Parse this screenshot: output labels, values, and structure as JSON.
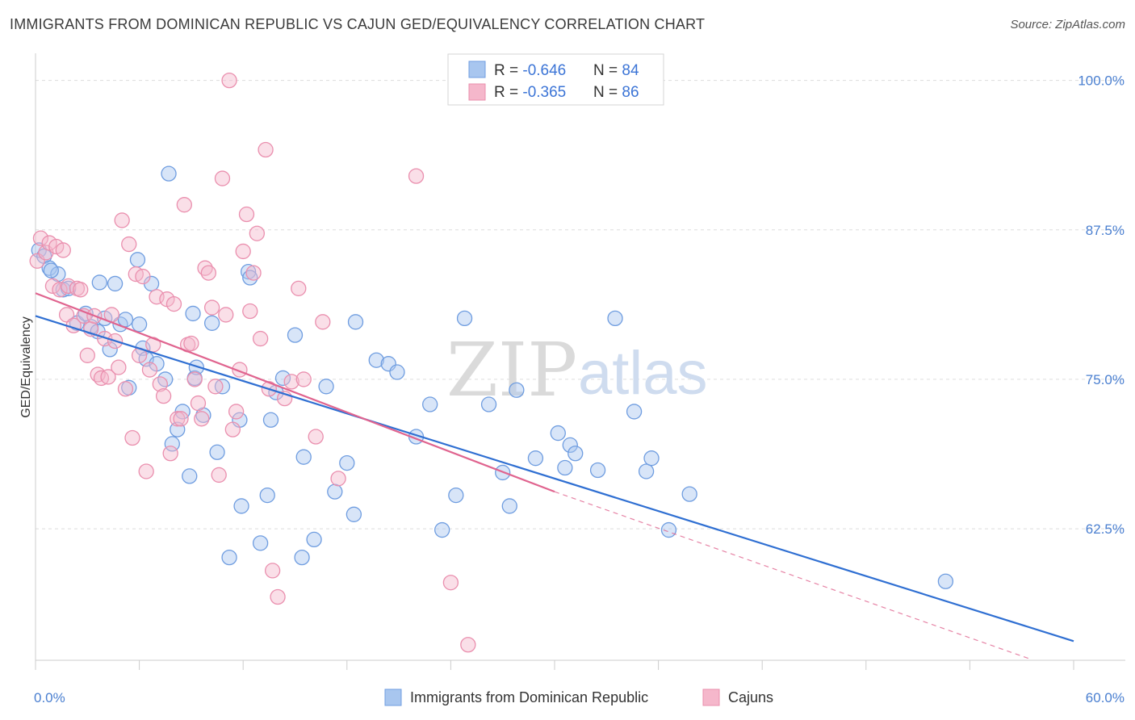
{
  "title": "IMMIGRANTS FROM DOMINICAN REPUBLIC VS CAJUN GED/EQUIVALENCY CORRELATION CHART",
  "source": "Source: ZipAtlas.com",
  "watermark": {
    "zip": "ZIP",
    "atlas": "atlas"
  },
  "colors": {
    "blue_fill": "#a8c6ef",
    "blue_stroke": "#6f9de0",
    "blue_line": "#2f6fd2",
    "pink_fill": "#f5b7cb",
    "pink_stroke": "#ea8fae",
    "pink_line": "#e0648f",
    "grid": "#dddddd",
    "tick_text": "#4a7fd0"
  },
  "legend": {
    "rows": [
      {
        "r_label": "R = ",
        "r_value": "-0.646",
        "n_label": "N = ",
        "n_value": "84"
      },
      {
        "r_label": "R = ",
        "r_value": "-0.365",
        "n_label": "N = ",
        "n_value": "86"
      }
    ]
  },
  "chart_data": {
    "type": "scatter",
    "ylabel": "GED/Equivalency",
    "xlim": [
      0,
      60
    ],
    "ylim": [
      51.5,
      102
    ],
    "x_tick_labels": [
      {
        "value": 0,
        "label": "0.0%"
      },
      {
        "value": 60,
        "label": "60.0%"
      }
    ],
    "y_tick_labels": [
      {
        "value": 100,
        "label": "100.0%"
      },
      {
        "value": 87.5,
        "label": "87.5%"
      },
      {
        "value": 75,
        "label": "75.0%"
      },
      {
        "value": 62.5,
        "label": "62.5%"
      }
    ],
    "grid": true,
    "legend_position": "top-center",
    "series": [
      {
        "name": "Immigrants from Dominican Republic",
        "trend": {
          "x": [
            0,
            60
          ],
          "y": [
            80.3,
            53.1
          ]
        },
        "points": [
          [
            0.2,
            85.8
          ],
          [
            0.5,
            85.3
          ],
          [
            0.8,
            84.3
          ],
          [
            1.3,
            83.8
          ],
          [
            0.9,
            84.1
          ],
          [
            1.6,
            82.5
          ],
          [
            1.9,
            82.6
          ],
          [
            2.4,
            79.7
          ],
          [
            2.9,
            80.5
          ],
          [
            3.2,
            79.4
          ],
          [
            3.6,
            79.0
          ],
          [
            3.7,
            83.1
          ],
          [
            4.0,
            80.1
          ],
          [
            4.3,
            77.5
          ],
          [
            4.6,
            83.0
          ],
          [
            4.9,
            79.6
          ],
          [
            5.2,
            80.0
          ],
          [
            5.4,
            74.3
          ],
          [
            5.9,
            85.0
          ],
          [
            6.0,
            79.6
          ],
          [
            6.2,
            77.6
          ],
          [
            6.4,
            76.7
          ],
          [
            6.7,
            83.0
          ],
          [
            7.0,
            76.3
          ],
          [
            7.5,
            75.0
          ],
          [
            7.7,
            92.2
          ],
          [
            7.9,
            69.6
          ],
          [
            8.2,
            70.8
          ],
          [
            8.5,
            72.3
          ],
          [
            8.9,
            66.9
          ],
          [
            9.1,
            80.5
          ],
          [
            9.2,
            75.1
          ],
          [
            9.3,
            76.0
          ],
          [
            9.7,
            72.0
          ],
          [
            10.2,
            79.7
          ],
          [
            10.5,
            68.9
          ],
          [
            10.8,
            74.4
          ],
          [
            11.2,
            60.1
          ],
          [
            11.8,
            71.6
          ],
          [
            11.9,
            64.4
          ],
          [
            12.3,
            84.0
          ],
          [
            12.4,
            83.5
          ],
          [
            13.0,
            61.3
          ],
          [
            13.4,
            65.3
          ],
          [
            13.6,
            71.6
          ],
          [
            13.9,
            73.9
          ],
          [
            14.3,
            75.1
          ],
          [
            15.0,
            78.7
          ],
          [
            15.4,
            60.1
          ],
          [
            15.5,
            68.5
          ],
          [
            16.1,
            61.6
          ],
          [
            16.8,
            74.4
          ],
          [
            17.3,
            65.6
          ],
          [
            18.0,
            68.0
          ],
          [
            18.4,
            63.7
          ],
          [
            18.5,
            79.8
          ],
          [
            19.7,
            76.6
          ],
          [
            20.4,
            76.3
          ],
          [
            20.9,
            75.6
          ],
          [
            22.0,
            70.2
          ],
          [
            22.8,
            72.9
          ],
          [
            23.5,
            62.4
          ],
          [
            24.3,
            65.3
          ],
          [
            24.8,
            80.1
          ],
          [
            26.2,
            72.9
          ],
          [
            27.0,
            67.2
          ],
          [
            27.4,
            64.4
          ],
          [
            27.8,
            74.1
          ],
          [
            28.9,
            68.4
          ],
          [
            30.2,
            70.5
          ],
          [
            30.6,
            67.6
          ],
          [
            30.9,
            69.5
          ],
          [
            31.2,
            68.8
          ],
          [
            32.5,
            67.4
          ],
          [
            33.5,
            80.1
          ],
          [
            34.6,
            72.3
          ],
          [
            35.3,
            67.3
          ],
          [
            35.6,
            68.4
          ],
          [
            36.6,
            62.4
          ],
          [
            37.8,
            65.4
          ],
          [
            52.6,
            58.1
          ]
        ]
      },
      {
        "name": "Cajuns",
        "trend": {
          "x": [
            0,
            30
          ],
          "y": [
            82.2,
            65.6
          ]
        },
        "trend_dashed": {
          "x": [
            30,
            57.5
          ],
          "y": [
            65.6,
            51.6
          ]
        },
        "points": [
          [
            0.1,
            84.9
          ],
          [
            0.3,
            86.8
          ],
          [
            0.6,
            85.6
          ],
          [
            0.8,
            86.4
          ],
          [
            1.0,
            82.8
          ],
          [
            1.2,
            86.1
          ],
          [
            1.4,
            82.5
          ],
          [
            1.6,
            85.8
          ],
          [
            1.8,
            80.4
          ],
          [
            1.9,
            82.8
          ],
          [
            2.2,
            79.5
          ],
          [
            2.4,
            82.6
          ],
          [
            2.6,
            82.5
          ],
          [
            2.8,
            80.3
          ],
          [
            3.0,
            77.0
          ],
          [
            3.2,
            79.2
          ],
          [
            3.4,
            80.3
          ],
          [
            3.6,
            75.4
          ],
          [
            3.8,
            75.1
          ],
          [
            4.0,
            78.4
          ],
          [
            4.2,
            75.2
          ],
          [
            4.4,
            80.4
          ],
          [
            4.6,
            78.2
          ],
          [
            4.8,
            76.0
          ],
          [
            5.0,
            88.3
          ],
          [
            5.2,
            74.2
          ],
          [
            5.4,
            86.3
          ],
          [
            5.6,
            70.1
          ],
          [
            5.8,
            83.8
          ],
          [
            6.0,
            77.0
          ],
          [
            6.2,
            83.6
          ],
          [
            6.4,
            67.3
          ],
          [
            6.6,
            75.8
          ],
          [
            6.8,
            77.9
          ],
          [
            7.0,
            81.9
          ],
          [
            7.2,
            74.6
          ],
          [
            7.4,
            73.6
          ],
          [
            7.6,
            81.7
          ],
          [
            7.8,
            68.8
          ],
          [
            8.0,
            81.3
          ],
          [
            8.2,
            71.7
          ],
          [
            8.4,
            71.7
          ],
          [
            8.6,
            89.6
          ],
          [
            8.8,
            77.9
          ],
          [
            9.0,
            78.0
          ],
          [
            9.2,
            75.0
          ],
          [
            9.4,
            73.0
          ],
          [
            9.6,
            71.7
          ],
          [
            9.8,
            84.3
          ],
          [
            10.0,
            83.9
          ],
          [
            10.2,
            81.0
          ],
          [
            10.4,
            74.4
          ],
          [
            10.6,
            67.0
          ],
          [
            10.8,
            91.8
          ],
          [
            11.0,
            80.4
          ],
          [
            11.2,
            100.0
          ],
          [
            11.4,
            70.8
          ],
          [
            11.6,
            72.3
          ],
          [
            11.8,
            75.8
          ],
          [
            12.0,
            85.7
          ],
          [
            12.2,
            88.8
          ],
          [
            12.4,
            80.7
          ],
          [
            12.6,
            83.9
          ],
          [
            12.8,
            87.2
          ],
          [
            13.0,
            78.4
          ],
          [
            13.3,
            94.2
          ],
          [
            13.5,
            74.2
          ],
          [
            13.7,
            59.0
          ],
          [
            14.0,
            56.8
          ],
          [
            14.4,
            73.4
          ],
          [
            14.8,
            74.8
          ],
          [
            15.2,
            82.6
          ],
          [
            15.5,
            75.0
          ],
          [
            16.2,
            70.2
          ],
          [
            16.6,
            79.8
          ],
          [
            17.5,
            66.7
          ],
          [
            22.0,
            92.0
          ],
          [
            24.0,
            58.0
          ],
          [
            25.0,
            52.8
          ]
        ]
      }
    ]
  },
  "bottom_legend": {
    "items": [
      {
        "label": "Immigrants from Dominican Republic"
      },
      {
        "label": "Cajuns"
      }
    ]
  }
}
